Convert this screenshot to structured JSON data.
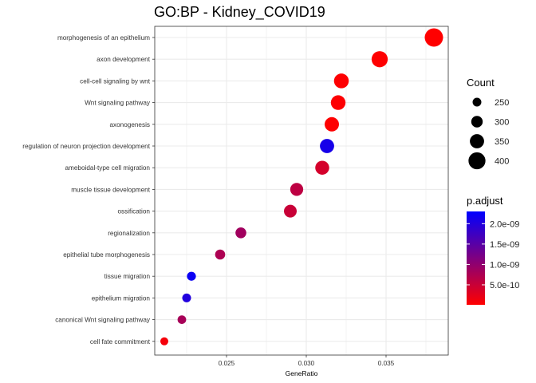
{
  "chart_data": {
    "type": "scatter",
    "title": "GO:BP - Kidney_COVID19",
    "xlabel": "GeneRatio",
    "ylabel": "",
    "xlim": [
      0.0205,
      0.0389
    ],
    "xticks": [
      0.025,
      0.03,
      0.035
    ],
    "xtick_labels": [
      "0.025",
      "0.030",
      "0.035"
    ],
    "grid": true,
    "legend_position": "right",
    "categories": [
      "morphogenesis of an epithelium",
      "axon development",
      "cell-cell signaling by wnt",
      "Wnt signaling pathway",
      "axonogenesis",
      "regulation of neuron projection development",
      "ameboidal-type cell migration",
      "muscle tissue development",
      "ossification",
      "regionalization",
      "epithelial tube morphogenesis",
      "tissue migration",
      "epithelium migration",
      "canonical Wnt signaling pathway",
      "cell fate commitment"
    ],
    "points": [
      {
        "term": "morphogenesis of an epithelium",
        "gene_ratio": 0.038,
        "count": 425,
        "p_adjust": 1e-11
      },
      {
        "term": "axon development",
        "gene_ratio": 0.0346,
        "count": 385,
        "p_adjust": 2e-11
      },
      {
        "term": "cell-cell signaling by wnt",
        "gene_ratio": 0.0322,
        "count": 360,
        "p_adjust": 3e-11
      },
      {
        "term": "Wnt signaling pathway",
        "gene_ratio": 0.032,
        "count": 358,
        "p_adjust": 3e-11
      },
      {
        "term": "axonogenesis",
        "gene_ratio": 0.0316,
        "count": 352,
        "p_adjust": 2e-11
      },
      {
        "term": "regulation of neuron projection development",
        "gene_ratio": 0.0313,
        "count": 350,
        "p_adjust": 2.1e-09
      },
      {
        "term": "ameboidal-type cell migration",
        "gene_ratio": 0.031,
        "count": 345,
        "p_adjust": 4e-10
      },
      {
        "term": "muscle tissue development",
        "gene_ratio": 0.0294,
        "count": 327,
        "p_adjust": 6e-10
      },
      {
        "term": "ossification",
        "gene_ratio": 0.029,
        "count": 323,
        "p_adjust": 5e-10
      },
      {
        "term": "regionalization",
        "gene_ratio": 0.0259,
        "count": 288,
        "p_adjust": 8.5e-10
      },
      {
        "term": "epithelial tube morphogenesis",
        "gene_ratio": 0.0246,
        "count": 274,
        "p_adjust": 7.5e-10
      },
      {
        "term": "tissue migration",
        "gene_ratio": 0.0228,
        "count": 254,
        "p_adjust": 2.2e-09
      },
      {
        "term": "epithelium migration",
        "gene_ratio": 0.0225,
        "count": 251,
        "p_adjust": 2e-09
      },
      {
        "term": "canonical Wnt signaling pathway",
        "gene_ratio": 0.0222,
        "count": 247,
        "p_adjust": 8e-10
      },
      {
        "term": "cell fate commitment",
        "gene_ratio": 0.0211,
        "count": 236,
        "p_adjust": 1e-10
      }
    ],
    "size_legend": {
      "title": "Count",
      "values": [
        250,
        300,
        350,
        400
      ],
      "labels": [
        "250",
        "300",
        "350",
        "400"
      ]
    },
    "color_legend": {
      "title": "p.adjust",
      "low_color": "#ff0000",
      "high_color": "#0000ff",
      "range": [
        1e-11,
        2.3e-09
      ],
      "values": [
        5e-10,
        1e-09,
        1.5e-09,
        2e-09
      ],
      "labels": [
        "5.0e-10",
        "1.0e-09",
        "1.5e-09",
        "2.0e-09"
      ]
    },
    "colors": {
      "panel_background": "#ffffff",
      "panel_border": "#333333",
      "grid": "#ebebeb"
    }
  }
}
